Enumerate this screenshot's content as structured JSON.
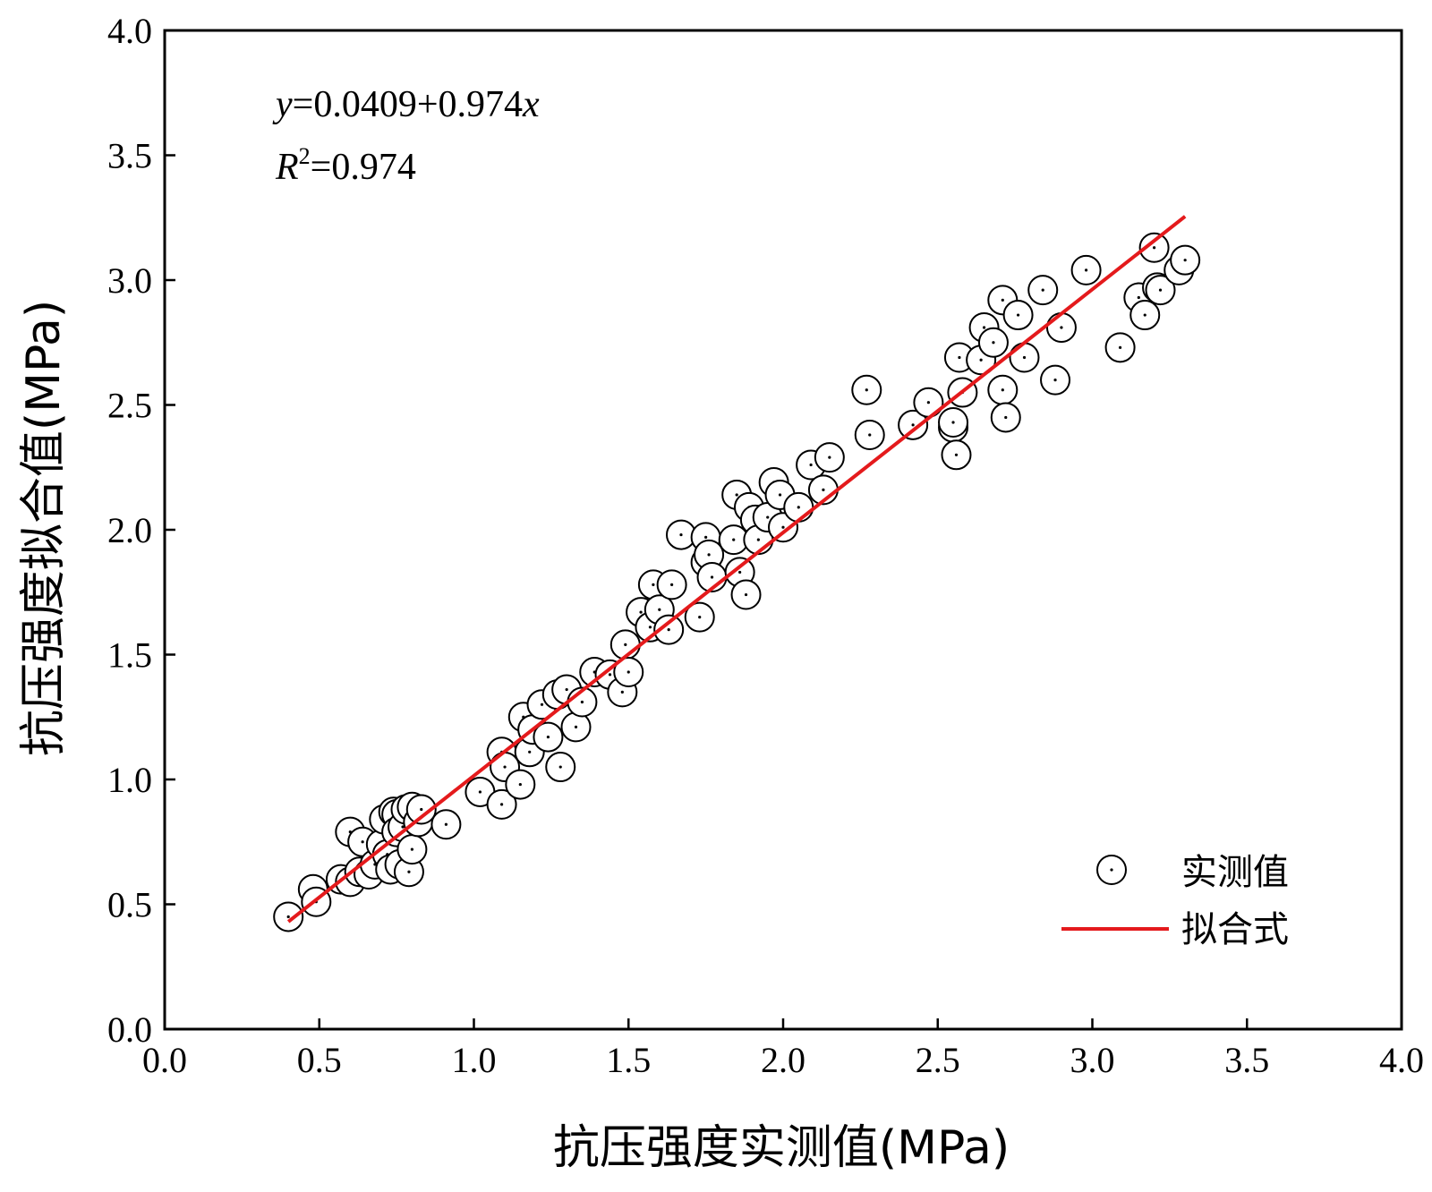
{
  "chart_data": {
    "type": "scatter",
    "title": "",
    "xlabel": "抗压强度实测值(MPa)",
    "ylabel": "抗压强度拟合值(MPa)",
    "xlim": [
      0.0,
      4.0
    ],
    "ylim": [
      0.0,
      4.0
    ],
    "xticks": [
      "0.0",
      "0.5",
      "1.0",
      "1.5",
      "2.0",
      "2.5",
      "3.0",
      "3.5",
      "4.0"
    ],
    "yticks": [
      "0.0",
      "0.5",
      "1.0",
      "1.5",
      "2.0",
      "2.5",
      "3.0",
      "3.5",
      "4.0"
    ],
    "grid": false,
    "legend_position": "bottom-right",
    "annotation": {
      "equation_y": "y",
      "equation_body": "=0.0409+0.974",
      "equation_x": "x",
      "r2_label": "R",
      "r2_sup": "2",
      "r2_value": "=0.974"
    },
    "series": [
      {
        "name": "实测值",
        "kind": "scatter",
        "color": "#000000",
        "x": [
          0.4,
          0.48,
          0.49,
          0.57,
          0.6,
          0.6,
          0.63,
          0.64,
          0.66,
          0.68,
          0.7,
          0.71,
          0.72,
          0.73,
          0.74,
          0.75,
          0.75,
          0.76,
          0.77,
          0.78,
          0.79,
          0.8,
          0.8,
          0.82,
          0.83,
          0.91,
          1.02,
          1.09,
          1.09,
          1.1,
          1.15,
          1.16,
          1.18,
          1.19,
          1.22,
          1.24,
          1.27,
          1.28,
          1.3,
          1.33,
          1.35,
          1.39,
          1.44,
          1.48,
          1.49,
          1.5,
          1.54,
          1.57,
          1.58,
          1.6,
          1.63,
          1.64,
          1.67,
          1.73,
          1.75,
          1.75,
          1.76,
          1.77,
          1.84,
          1.85,
          1.86,
          1.88,
          1.89,
          1.91,
          1.92,
          1.95,
          1.97,
          1.99,
          2.0,
          2.05,
          2.09,
          2.13,
          2.15,
          2.27,
          2.28,
          2.42,
          2.47,
          2.55,
          2.55,
          2.56,
          2.57,
          2.58,
          2.64,
          2.65,
          2.68,
          2.71,
          2.71,
          2.72,
          2.76,
          2.78,
          2.84,
          2.88,
          2.9,
          2.98,
          3.09,
          3.15,
          3.17,
          3.2,
          3.21,
          3.22,
          3.28,
          3.3
        ],
        "y": [
          0.45,
          0.56,
          0.51,
          0.6,
          0.59,
          0.79,
          0.63,
          0.75,
          0.62,
          0.66,
          0.74,
          0.84,
          0.7,
          0.64,
          0.87,
          0.86,
          0.79,
          0.66,
          0.81,
          0.88,
          0.63,
          0.89,
          0.72,
          0.83,
          0.88,
          0.82,
          0.95,
          1.11,
          0.9,
          1.05,
          0.98,
          1.25,
          1.11,
          1.2,
          1.3,
          1.17,
          1.34,
          1.05,
          1.36,
          1.21,
          1.31,
          1.43,
          1.42,
          1.35,
          1.54,
          1.43,
          1.67,
          1.61,
          1.78,
          1.68,
          1.6,
          1.78,
          1.98,
          1.65,
          1.97,
          1.87,
          1.9,
          1.81,
          1.96,
          2.14,
          1.83,
          1.74,
          2.09,
          2.04,
          1.96,
          2.05,
          2.19,
          2.14,
          2.01,
          2.09,
          2.26,
          2.16,
          2.29,
          2.56,
          2.38,
          2.42,
          2.51,
          2.41,
          2.43,
          2.3,
          2.69,
          2.55,
          2.68,
          2.81,
          2.75,
          2.92,
          2.56,
          2.45,
          2.86,
          2.69,
          2.96,
          2.6,
          2.81,
          3.04,
          2.73,
          2.93,
          2.86,
          3.13,
          2.97,
          2.96,
          3.04,
          3.08
        ]
      },
      {
        "name": "拟合式",
        "kind": "line",
        "color": "#e41a1c",
        "x": [
          0.4,
          3.3
        ],
        "y": [
          0.4305,
          3.2551
        ]
      }
    ]
  }
}
